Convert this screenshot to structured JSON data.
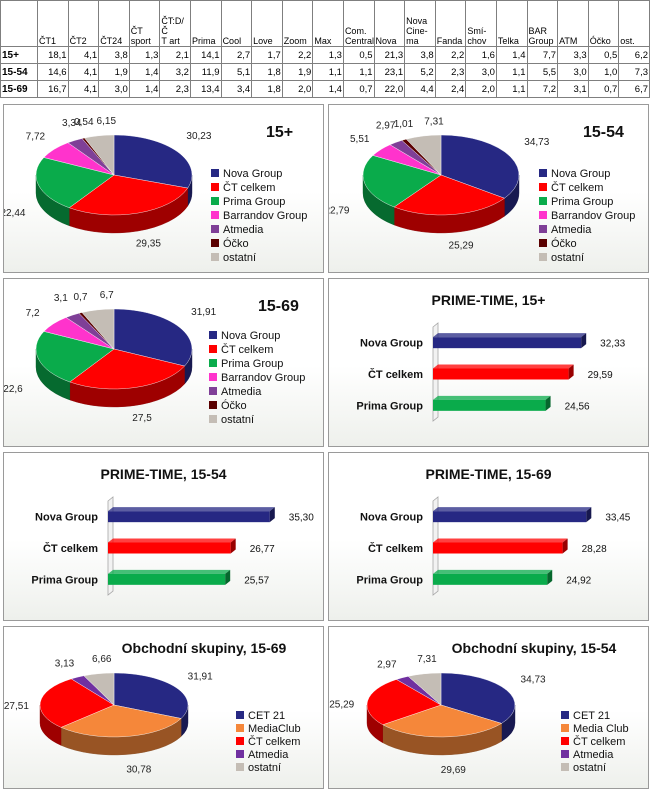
{
  "table": {
    "columns": [
      "ČT1",
      "ČT2",
      "ČT24",
      "ČT\nsport",
      "ČT:D/Č\nT art",
      "Prima",
      "Cool",
      "Love",
      "Zoom",
      "Max",
      "Com.\nCentral",
      "Nova",
      "Nova\nCine-\nma",
      "Fanda",
      "Smí-\nchov",
      "Telka",
      "BAR\nGroup",
      "ATM",
      "Óčko",
      "ost."
    ],
    "rows": [
      {
        "label": "15+",
        "values": [
          "18,1",
          "4,1",
          "3,8",
          "1,3",
          "2,1",
          "14,1",
          "2,7",
          "1,7",
          "2,2",
          "1,3",
          "0,5",
          "21,3",
          "3,8",
          "2,2",
          "1,6",
          "1,4",
          "7,7",
          "3,3",
          "0,5",
          "6,2"
        ]
      },
      {
        "label": "15-54",
        "values": [
          "14,6",
          "4,1",
          "1,9",
          "1,4",
          "3,2",
          "11,9",
          "5,1",
          "1,8",
          "1,9",
          "1,1",
          "1,1",
          "23,1",
          "5,2",
          "2,3",
          "3,0",
          "1,1",
          "5,5",
          "3,0",
          "1,0",
          "7,3"
        ]
      },
      {
        "label": "15-69",
        "values": [
          "16,7",
          "4,1",
          "3,0",
          "1,4",
          "2,3",
          "13,4",
          "3,4",
          "1,8",
          "2,0",
          "1,4",
          "0,7",
          "22,0",
          "4,4",
          "2,4",
          "2,0",
          "1,1",
          "7,2",
          "3,1",
          "0,7",
          "6,7"
        ]
      }
    ]
  },
  "colors": {
    "nova": "#262883",
    "ct": "#ff0000",
    "prima": "#0aab4b",
    "barrandov": "#ff33cc",
    "atmedia": "#7f3f97",
    "ocko": "#5a0000",
    "ostatni": "#c4bdb5",
    "cet21": "#262883",
    "mediaclub": "#f5873a",
    "atmedia2": "#7030a0"
  },
  "chart_data": [
    {
      "type": "pie",
      "title": "15+",
      "labels": [
        "Nova Group",
        "ČT celkem",
        "Prima Group",
        "Barrandov Group",
        "Atmedia",
        "Óčko",
        "ostatní"
      ],
      "values": [
        30.23,
        29.35,
        22.44,
        7.72,
        3.34,
        0.54,
        6.15
      ],
      "value_labels": [
        "30,23",
        "29,35",
        "22,44",
        "7,72",
        "3,34",
        "0,54",
        "6,15"
      ],
      "legend": "right"
    },
    {
      "type": "pie",
      "title": "15-54",
      "labels": [
        "Nova Group",
        "ČT celkem",
        "Prima Group",
        "Barrandov Group",
        "Atmedia",
        "Óčko",
        "ostatní"
      ],
      "values": [
        34.73,
        25.29,
        22.79,
        5.51,
        2.97,
        1.01,
        7.31
      ],
      "value_labels": [
        "34,73",
        "25,29",
        "22,79",
        "5,51",
        "2,97",
        "1,01",
        "7,31"
      ],
      "legend": "right"
    },
    {
      "type": "pie",
      "title": "15-69",
      "labels": [
        "Nova Group",
        "ČT celkem",
        "Prima Group",
        "Barrandov Group",
        "Atmedia",
        "Óčko",
        "ostatní"
      ],
      "values": [
        31.91,
        27.5,
        22.6,
        7.2,
        3.1,
        0.7,
        6.7
      ],
      "value_labels": [
        "31,91",
        "27,5",
        "22,6",
        "7,2",
        "3,1",
        "0,7",
        "6,7"
      ],
      "legend": "right"
    },
    {
      "type": "bar",
      "title": "PRIME-TIME, 15+",
      "categories": [
        "Nova Group",
        "ČT celkem",
        "Prima Group"
      ],
      "values": [
        32.33,
        29.59,
        24.56
      ],
      "value_labels": [
        "32,33",
        "29,59",
        "24,56"
      ]
    },
    {
      "type": "bar",
      "title": "PRIME-TIME, 15-54",
      "categories": [
        "Nova Group",
        "ČT celkem",
        "Prima Group"
      ],
      "values": [
        35.3,
        26.77,
        25.57
      ],
      "value_labels": [
        "35,30",
        "26,77",
        "25,57"
      ]
    },
    {
      "type": "bar",
      "title": "PRIME-TIME, 15-69",
      "categories": [
        "Nova Group",
        "ČT celkem",
        "Prima Group"
      ],
      "values": [
        33.45,
        28.28,
        24.92
      ],
      "value_labels": [
        "33,45",
        "28,28",
        "24,92"
      ]
    },
    {
      "type": "pie",
      "title": "Obchodní skupiny, 15-69",
      "labels": [
        "CET 21",
        "MediaClub",
        "ČT celkem",
        "Atmedia",
        "ostatní"
      ],
      "values": [
        31.91,
        30.78,
        27.51,
        3.13,
        6.66
      ],
      "value_labels": [
        "31,91",
        "30,78",
        "27,51",
        "3,13",
        "6,66"
      ],
      "legend": "right"
    },
    {
      "type": "pie",
      "title": "Obchodní skupiny, 15-54",
      "labels": [
        "CET 21",
        "Media Club",
        "ČT celkem",
        "Atmedia",
        "ostatní"
      ],
      "values": [
        34.73,
        29.69,
        25.29,
        2.97,
        7.31
      ],
      "value_labels": [
        "34,73",
        "29,69",
        "25,29",
        "2,97",
        "7,31"
      ],
      "legend": "right"
    }
  ]
}
